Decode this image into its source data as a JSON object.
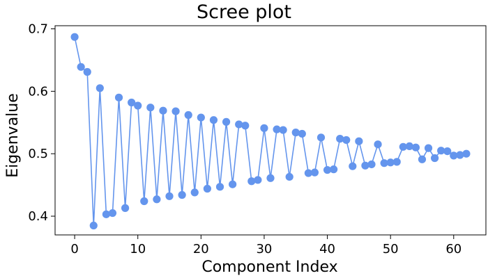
{
  "chart_data": {
    "type": "line",
    "title": "Scree plot",
    "xlabel": "Component Index",
    "ylabel": "Eigenvalue",
    "xlim": [
      -3.1,
      65.1
    ],
    "ylim": [
      0.37,
      0.705
    ],
    "xticks": [
      0,
      10,
      20,
      30,
      40,
      50,
      60
    ],
    "yticks": [
      0.4,
      0.5,
      0.6,
      0.7
    ],
    "grid": false,
    "colors": {
      "series": "#6495ED"
    },
    "series": [
      {
        "x": [
          0,
          1,
          2,
          3,
          4,
          5,
          6,
          7,
          8,
          9,
          10,
          11,
          12,
          13,
          14,
          15,
          16,
          17,
          18,
          19,
          20,
          21,
          22,
          23,
          24,
          25,
          26,
          27,
          28,
          29,
          30,
          31,
          32,
          33,
          34,
          35,
          36,
          37,
          38,
          39,
          40,
          41,
          42,
          43,
          44,
          45,
          46,
          47,
          48,
          49,
          50,
          51,
          52,
          53,
          54,
          55,
          56,
          57,
          58,
          59,
          60,
          61,
          62
        ],
        "values": [
          0.687,
          0.639,
          0.631,
          0.385,
          0.605,
          0.403,
          0.405,
          0.59,
          0.413,
          0.582,
          0.577,
          0.424,
          0.574,
          0.427,
          0.569,
          0.432,
          0.568,
          0.434,
          0.562,
          0.438,
          0.558,
          0.444,
          0.554,
          0.447,
          0.551,
          0.451,
          0.547,
          0.545,
          0.456,
          0.458,
          0.541,
          0.461,
          0.539,
          0.538,
          0.463,
          0.534,
          0.532,
          0.469,
          0.47,
          0.526,
          0.474,
          0.475,
          0.524,
          0.522,
          0.48,
          0.52,
          0.481,
          0.483,
          0.515,
          0.485,
          0.486,
          0.487,
          0.511,
          0.512,
          0.51,
          0.491,
          0.509,
          0.493,
          0.505,
          0.504,
          0.497,
          0.498,
          0.5
        ]
      }
    ]
  }
}
